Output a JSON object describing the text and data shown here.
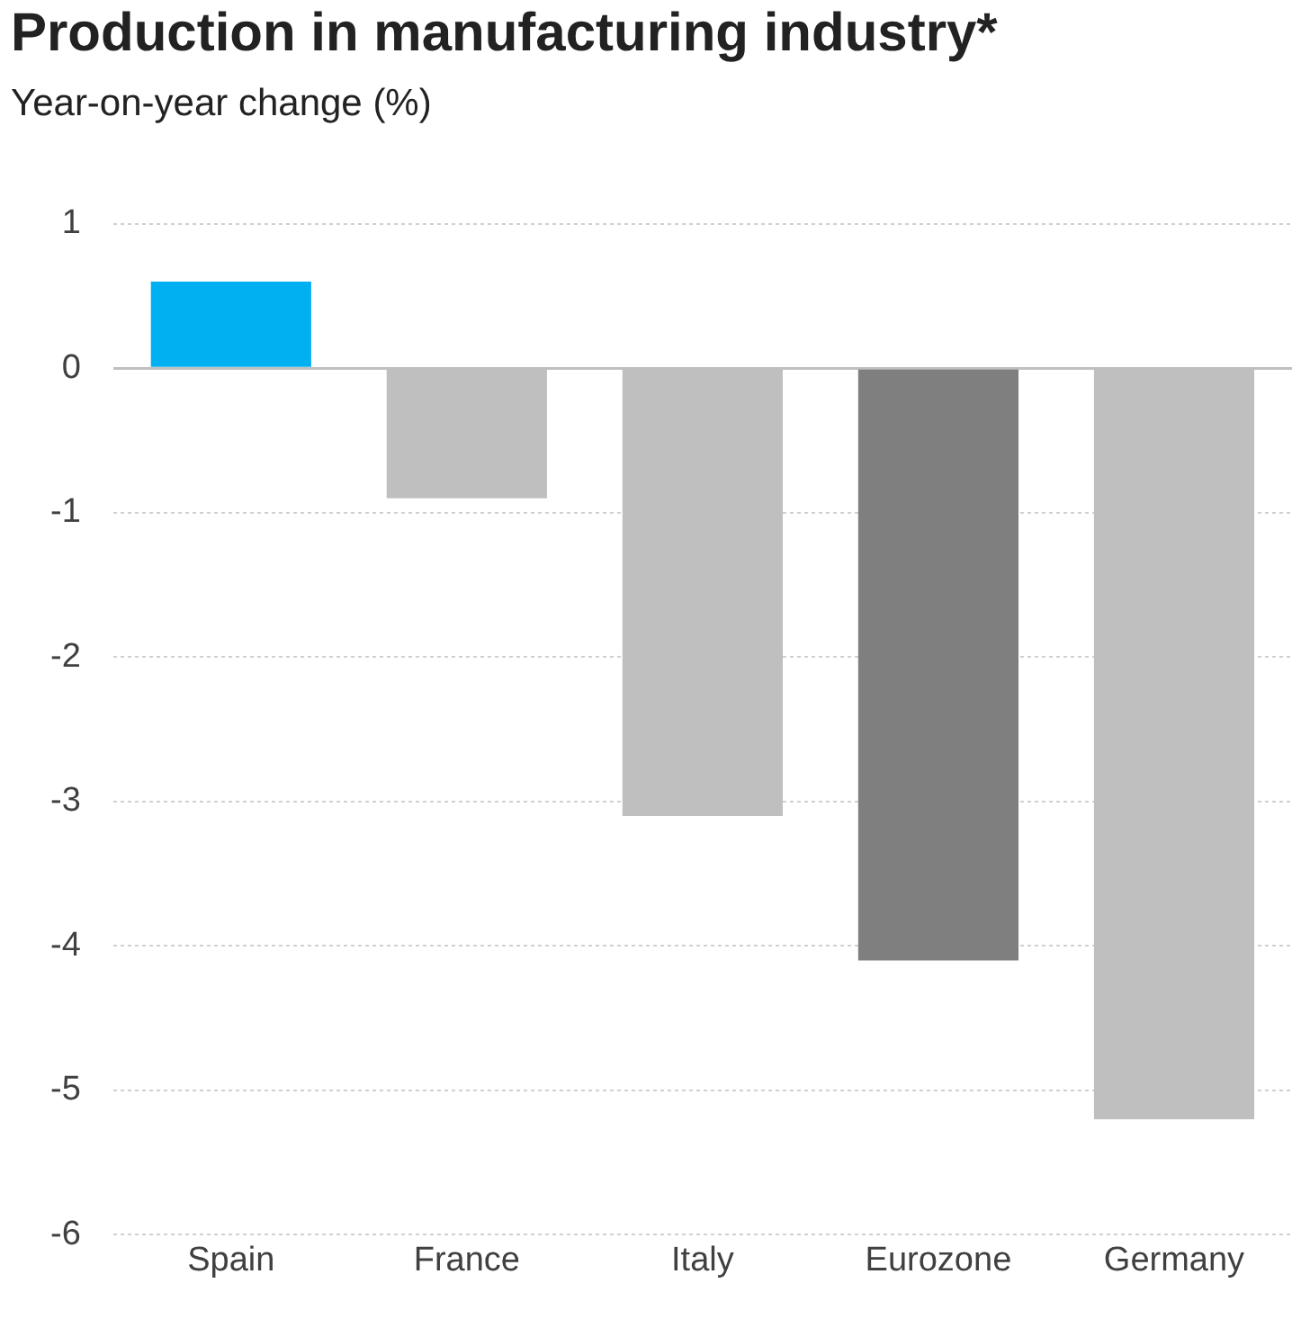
{
  "chart_data": {
    "type": "bar",
    "title": "Production in manufacturing industry*",
    "subtitle": "Year-on-year change (%)",
    "categories": [
      "Spain",
      "France",
      "Italy",
      "Eurozone",
      "Germany"
    ],
    "values": [
      0.6,
      -0.9,
      -3.1,
      -4.1,
      -5.2
    ],
    "colors": [
      "#00b0f0",
      "#bfbfbf",
      "#bfbfbf",
      "#7f7f7f",
      "#bfbfbf"
    ],
    "ylim": [
      -6,
      1
    ],
    "yticks": [
      -6,
      -5,
      -4,
      -3,
      -2,
      -1,
      0,
      1
    ],
    "grid": "y",
    "legend": false
  }
}
